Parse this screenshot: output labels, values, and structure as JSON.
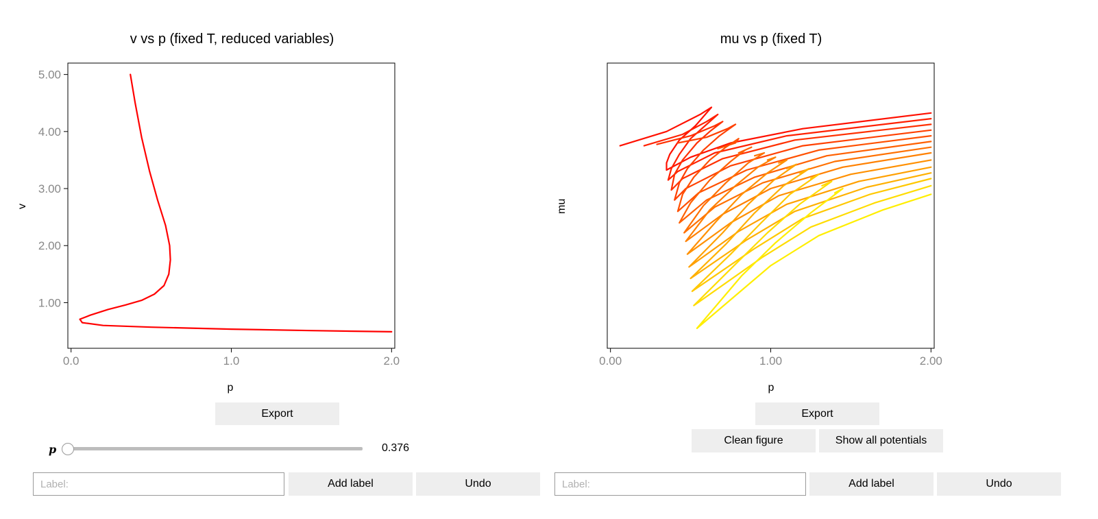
{
  "left_panel": {
    "export_label": "Export",
    "slider": {
      "label": "p",
      "value_text": "0.376",
      "value": 0.376,
      "min": 0.376,
      "max": 2.0
    },
    "label_placeholder": "Label:",
    "add_label": "Add label",
    "undo_label": "Undo"
  },
  "right_panel": {
    "export_label": "Export",
    "clean_label": "Clean figure",
    "show_all_label": "Show all potentials",
    "label_placeholder": "Label:",
    "add_label": "Add label",
    "undo_label": "Undo"
  },
  "colors": {
    "curve_red": "#ff0000",
    "button_bg": "#eeeeee",
    "axis": "#000000",
    "tick_text": "#888888"
  },
  "chart_data": [
    {
      "id": "v-vs-p",
      "type": "line",
      "title": "v vs p (fixed T, reduced variables)",
      "xlabel": "p",
      "ylabel": "v",
      "xlim": [
        -0.02,
        2.02
      ],
      "ylim": [
        0.2,
        5.2
      ],
      "xticks": [
        0.0,
        1.0,
        2.0
      ],
      "xtick_labels": [
        "0.0",
        "1.0",
        "2.0"
      ],
      "yticks": [
        1.0,
        2.0,
        3.0,
        4.0,
        5.0
      ],
      "ytick_labels": [
        "1.00",
        "2.00",
        "3.00",
        "4.00",
        "5.00"
      ],
      "grid": false,
      "series": [
        {
          "color": "#ff0000",
          "points": [
            [
              0.37,
              5.0
            ],
            [
              0.4,
              4.5
            ],
            [
              0.44,
              3.9
            ],
            [
              0.49,
              3.3
            ],
            [
              0.54,
              2.8
            ],
            [
              0.59,
              2.35
            ],
            [
              0.615,
              2.0
            ],
            [
              0.62,
              1.75
            ],
            [
              0.61,
              1.5
            ],
            [
              0.58,
              1.3
            ],
            [
              0.52,
              1.15
            ],
            [
              0.44,
              1.04
            ],
            [
              0.34,
              0.96
            ],
            [
              0.23,
              0.88
            ],
            [
              0.12,
              0.78
            ],
            [
              0.055,
              0.71
            ],
            [
              0.07,
              0.65
            ],
            [
              0.2,
              0.6
            ],
            [
              0.5,
              0.57
            ],
            [
              1.0,
              0.535
            ],
            [
              1.5,
              0.51
            ],
            [
              2.0,
              0.49
            ]
          ]
        }
      ]
    },
    {
      "id": "mu-vs-p",
      "type": "line",
      "title": "mu vs p (fixed T)",
      "xlabel": "p",
      "ylabel": "mu",
      "xlim": [
        -0.02,
        2.02
      ],
      "ylim": [
        0,
        10
      ],
      "xticks": [
        0.0,
        1.0,
        2.0
      ],
      "xtick_labels": [
        "0.00",
        "1.00",
        "2.00"
      ],
      "yticks": [],
      "grid": false,
      "series": [
        {
          "color": "#ff1000",
          "points": [
            [
              0.06,
              7.1
            ],
            [
              0.35,
              7.6
            ],
            [
              0.56,
              8.2
            ],
            [
              0.63,
              8.45
            ],
            [
              0.53,
              7.8
            ],
            [
              0.43,
              7.3
            ],
            [
              0.37,
              6.8
            ],
            [
              0.35,
              6.5
            ],
            [
              0.35,
              6.25
            ],
            [
              0.5,
              6.7
            ],
            [
              0.75,
              7.2
            ],
            [
              1.2,
              7.7
            ],
            [
              2.0,
              8.25
            ]
          ]
        },
        {
          "color": "#ff2000",
          "points": [
            [
              0.21,
              7.1
            ],
            [
              0.45,
              7.5
            ],
            [
              0.6,
              7.95
            ],
            [
              0.67,
              8.2
            ],
            [
              0.59,
              7.8
            ],
            [
              0.5,
              7.35
            ],
            [
              0.43,
              6.8
            ],
            [
              0.38,
              6.3
            ],
            [
              0.36,
              5.9
            ],
            [
              0.42,
              6.2
            ],
            [
              0.65,
              6.85
            ],
            [
              1.1,
              7.45
            ],
            [
              2.0,
              8.05
            ]
          ]
        },
        {
          "color": "#ff3000",
          "points": [
            [
              0.29,
              7.15
            ],
            [
              0.5,
              7.45
            ],
            [
              0.65,
              7.8
            ],
            [
              0.7,
              7.95
            ],
            [
              0.62,
              7.6
            ],
            [
              0.54,
              7.2
            ],
            [
              0.45,
              6.6
            ],
            [
              0.4,
              6.1
            ],
            [
              0.38,
              5.55
            ],
            [
              0.45,
              5.95
            ],
            [
              0.7,
              6.65
            ],
            [
              1.15,
              7.3
            ],
            [
              2.0,
              7.85
            ]
          ]
        },
        {
          "color": "#ff4000",
          "points": [
            [
              0.42,
              7.2
            ],
            [
              0.6,
              7.4
            ],
            [
              0.73,
              7.7
            ],
            [
              0.78,
              7.85
            ],
            [
              0.68,
              7.45
            ],
            [
              0.58,
              6.95
            ],
            [
              0.48,
              6.3
            ],
            [
              0.43,
              5.8
            ],
            [
              0.4,
              5.2
            ],
            [
              0.47,
              5.6
            ],
            [
              0.75,
              6.4
            ],
            [
              1.2,
              7.1
            ],
            [
              2.0,
              7.65
            ]
          ]
        },
        {
          "color": "#ff5000",
          "points": [
            [
              0.67,
              7.0
            ],
            [
              0.78,
              7.2
            ],
            [
              0.8,
              7.35
            ],
            [
              0.72,
              7.05
            ],
            [
              0.62,
              6.6
            ],
            [
              0.52,
              6.0
            ],
            [
              0.45,
              5.4
            ],
            [
              0.42,
              4.8
            ],
            [
              0.55,
              5.45
            ],
            [
              0.85,
              6.25
            ],
            [
              1.3,
              6.95
            ],
            [
              2.0,
              7.45
            ]
          ]
        },
        {
          "color": "#ff6000",
          "points": [
            [
              0.8,
              6.85
            ],
            [
              0.88,
              7.05
            ],
            [
              0.84,
              6.95
            ],
            [
              0.75,
              6.55
            ],
            [
              0.62,
              5.9
            ],
            [
              0.5,
              5.1
            ],
            [
              0.43,
              4.4
            ],
            [
              0.6,
              5.2
            ],
            [
              0.9,
              6.0
            ],
            [
              1.35,
              6.75
            ],
            [
              2.0,
              7.25
            ]
          ]
        },
        {
          "color": "#ff7000",
          "points": [
            [
              0.9,
              6.75
            ],
            [
              0.96,
              6.85
            ],
            [
              0.86,
              6.5
            ],
            [
              0.72,
              5.8
            ],
            [
              0.58,
              5.0
            ],
            [
              0.46,
              4.05
            ],
            [
              0.65,
              4.95
            ],
            [
              0.95,
              5.8
            ],
            [
              1.4,
              6.55
            ],
            [
              2.0,
              7.05
            ]
          ]
        },
        {
          "color": "#ff8000",
          "points": [
            [
              0.98,
              6.6
            ],
            [
              1.03,
              6.7
            ],
            [
              0.92,
              6.35
            ],
            [
              0.78,
              5.7
            ],
            [
              0.62,
              4.85
            ],
            [
              0.47,
              3.75
            ],
            [
              0.7,
              4.7
            ],
            [
              1.0,
              5.6
            ],
            [
              1.45,
              6.35
            ],
            [
              2.0,
              6.85
            ]
          ]
        },
        {
          "color": "#ff9000",
          "points": [
            [
              1.05,
              6.5
            ],
            [
              1.1,
              6.6
            ],
            [
              0.98,
              6.15
            ],
            [
              0.82,
              5.4
            ],
            [
              0.66,
              4.45
            ],
            [
              0.48,
              3.3
            ],
            [
              0.75,
              4.4
            ],
            [
              1.05,
              5.35
            ],
            [
              1.5,
              6.1
            ],
            [
              2.0,
              6.6
            ]
          ]
        },
        {
          "color": "#ffa000",
          "points": [
            [
              1.1,
              6.3
            ],
            [
              1.16,
              6.45
            ],
            [
              1.02,
              5.9
            ],
            [
              0.86,
              5.05
            ],
            [
              0.7,
              4.05
            ],
            [
              0.49,
              2.85
            ],
            [
              0.8,
              4.1
            ],
            [
              1.1,
              5.05
            ],
            [
              1.55,
              5.85
            ],
            [
              2.0,
              6.35
            ]
          ]
        },
        {
          "color": "#ffb000",
          "points": [
            [
              1.18,
              6.15
            ],
            [
              1.24,
              6.3
            ],
            [
              1.08,
              5.7
            ],
            [
              0.9,
              4.75
            ],
            [
              0.72,
              3.65
            ],
            [
              0.5,
              2.45
            ],
            [
              0.85,
              3.8
            ],
            [
              1.15,
              4.8
            ],
            [
              1.6,
              5.65
            ],
            [
              2.0,
              6.15
            ]
          ]
        },
        {
          "color": "#ffc800",
          "points": [
            [
              1.25,
              5.95
            ],
            [
              1.3,
              6.1
            ],
            [
              1.12,
              5.4
            ],
            [
              0.94,
              4.4
            ],
            [
              0.75,
              3.3
            ],
            [
              0.51,
              2.0
            ],
            [
              0.9,
              3.5
            ],
            [
              1.2,
              4.55
            ],
            [
              1.62,
              5.4
            ],
            [
              2.0,
              5.95
            ]
          ]
        },
        {
          "color": "#ffdc00",
          "points": [
            [
              1.32,
              5.7
            ],
            [
              1.38,
              5.85
            ],
            [
              1.18,
              5.05
            ],
            [
              0.98,
              4.05
            ],
            [
              0.78,
              2.95
            ],
            [
              0.52,
              1.5
            ],
            [
              0.95,
              3.2
            ],
            [
              1.25,
              4.25
            ],
            [
              1.65,
              5.1
            ],
            [
              2.0,
              5.7
            ]
          ]
        },
        {
          "color": "#ffee00",
          "points": [
            [
              1.4,
              5.45
            ],
            [
              1.45,
              5.6
            ],
            [
              1.25,
              4.75
            ],
            [
              1.03,
              3.7
            ],
            [
              0.82,
              2.55
            ],
            [
              0.54,
              0.7
            ],
            [
              1.0,
              2.9
            ],
            [
              1.3,
              3.95
            ],
            [
              1.7,
              4.85
            ],
            [
              2.0,
              5.4
            ]
          ]
        }
      ]
    }
  ]
}
